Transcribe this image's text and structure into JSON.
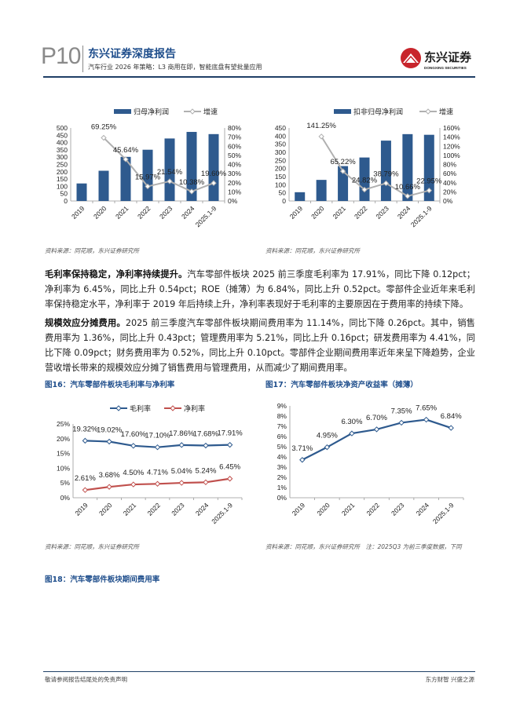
{
  "header": {
    "page_no": "P10",
    "title": "东兴证券深度报告",
    "subtitle": "汽车行业 2026 年策略：L3 商用在即，智能底盘有望批量应用",
    "logo_cn": "东兴证券",
    "logo_en": "DONGXING SECURITIES"
  },
  "colors": {
    "bar": "#2e5a8e",
    "growth": "#b0b0b0",
    "net_margin": "#c0504d",
    "accent": "#1f4e8c"
  },
  "paragraphs": [
    {
      "lead": "毛利率保持稳定，净利率持续提升。",
      "body": "汽车零部件板块 2025 前三季度毛利率为 17.91%，同比下降 0.12pct；净利率为 6.45%，同比上升 0.54pct；ROE（摊薄）为 6.84%，同比上升 0.52pct。零部件企业近年来毛利率保持稳定水平，净利率于 2019 年后持续上升，净利率表现好于毛利率的主要原因在于费用率的持续下降。"
    },
    {
      "lead": "规模效应分摊费用。",
      "body": "2025 前三季度汽车零部件板块期间费用率为 11.14%，同比下降 0.26pct。其中，销售费用率为 1.36%，同比上升 0.43pct；管理费用率为 5.21%，同比上升 0.16pct；研发费用率为 4.41%，同比下降 0.09pct；财务费用率为 0.52%，同比上升 0.10pct。零部件企业期间费用率近年来呈下降趋势，企业营收增长带来的规模效应分摊了销售费用与管理费用，从而减少了期间费用率。"
    }
  ],
  "figures": {
    "fig16_title": "图16：汽车零部件板块毛利率与净利率",
    "fig17_title": "图17：汽车零部件板块净资产收益率（摊薄）",
    "fig18_title": "图18：汽车零部件板块期间费用率",
    "source1": "资料来源：同花顺，东兴证券研究所",
    "source2": "资料来源：同花顺，东兴证券研究所",
    "source3": "资料来源：同花顺，东兴证券研究所",
    "source4": "资料来源：同花顺，东兴证券研究所　注：2025Q3 为前三季度数据，下同"
  },
  "chart_data": [
    {
      "type": "bar",
      "categories": [
        "2019",
        "2020",
        "2021",
        "2022",
        "2023",
        "2024",
        "2025.1-9"
      ],
      "series": [
        {
          "name": "归母净利润",
          "type": "bar",
          "axis": "left",
          "values": [
            120,
            207,
            302,
            351,
            428,
            473,
            458
          ]
        },
        {
          "name": "增速",
          "type": "line",
          "axis": "right",
          "values": [
            null,
            69.25,
            45.64,
            15.97,
            21.54,
            10.38,
            19.6
          ],
          "labels": [
            "",
            "69.25%",
            "45.64%",
            "15.97%",
            "21.54%",
            "10.38%",
            "19.60%"
          ]
        }
      ],
      "ylim": [
        0,
        500
      ],
      "yticks": [
        "0",
        "50",
        "100",
        "150",
        "200",
        "250",
        "300",
        "350",
        "400",
        "450",
        "500"
      ],
      "y2lim": [
        0,
        80
      ],
      "y2ticks": [
        "0%",
        "10%",
        "20%",
        "30%",
        "40%",
        "50%",
        "60%",
        "70%",
        "80%"
      ],
      "legend": "top"
    },
    {
      "type": "bar",
      "categories": [
        "2019",
        "2020",
        "2021",
        "2022",
        "2023",
        "2024",
        "2025.1-9"
      ],
      "series": [
        {
          "name": "扣非归母净利润",
          "type": "bar",
          "axis": "left",
          "values": [
            54,
            130,
            215,
            268,
            372,
            412,
            408
          ]
        },
        {
          "name": "增速",
          "type": "line",
          "axis": "right",
          "values": [
            null,
            141.25,
            65.22,
            24.82,
            38.79,
            10.66,
            22.95
          ],
          "labels": [
            "",
            "141.25%",
            "65.22%",
            "24.82%",
            "38.79%",
            "10.66%",
            "22.95%"
          ]
        }
      ],
      "ylim": [
        0,
        450
      ],
      "yticks": [
        "0",
        "50",
        "100",
        "150",
        "200",
        "250",
        "300",
        "350",
        "400",
        "450"
      ],
      "y2lim": [
        0,
        160
      ],
      "y2ticks": [
        "0%",
        "20%",
        "40%",
        "60%",
        "80%",
        "100%",
        "120%",
        "140%",
        "160%"
      ],
      "legend": "top"
    },
    {
      "type": "line",
      "categories": [
        "2019",
        "2020",
        "2021",
        "2022",
        "2023",
        "2024",
        "2025.1-9"
      ],
      "series": [
        {
          "name": "毛利率",
          "values": [
            19.32,
            19.02,
            17.6,
            17.1,
            17.86,
            17.68,
            17.91
          ],
          "labels": [
            "19.32%",
            "19.02%",
            "17.60%",
            "17.10%",
            "17.86%",
            "17.68%",
            "17.91%"
          ]
        },
        {
          "name": "净利率",
          "values": [
            2.61,
            3.68,
            4.5,
            4.71,
            5.04,
            5.24,
            6.45
          ],
          "labels": [
            "2.61%",
            "3.68%",
            "4.50%",
            "4.71%",
            "5.04%",
            "5.24%",
            "6.45%"
          ]
        }
      ],
      "ylim": [
        0,
        25
      ],
      "yticks": [
        "0%",
        "5%",
        "10%",
        "15%",
        "20%",
        "25%"
      ],
      "legend": "top"
    },
    {
      "type": "line",
      "categories": [
        "2019",
        "2020",
        "2021",
        "2022",
        "2023",
        "2024",
        "2025.1-9"
      ],
      "series": [
        {
          "values": [
            3.71,
            4.95,
            6.3,
            6.7,
            7.35,
            7.65,
            6.84
          ],
          "labels": [
            "3.71%",
            "4.95%",
            "6.30%",
            "6.70%",
            "7.35%",
            "7.65%",
            "6.84%"
          ]
        }
      ],
      "ylim": [
        0,
        9
      ],
      "yticks": [
        "0%",
        "1%",
        "2%",
        "3%",
        "4%",
        "5%",
        "6%",
        "7%",
        "8%",
        "9%"
      ]
    }
  ],
  "footer": {
    "left": "敬请参阅报告结尾处的免责声明",
    "right": "东方财智 兴盛之源"
  }
}
